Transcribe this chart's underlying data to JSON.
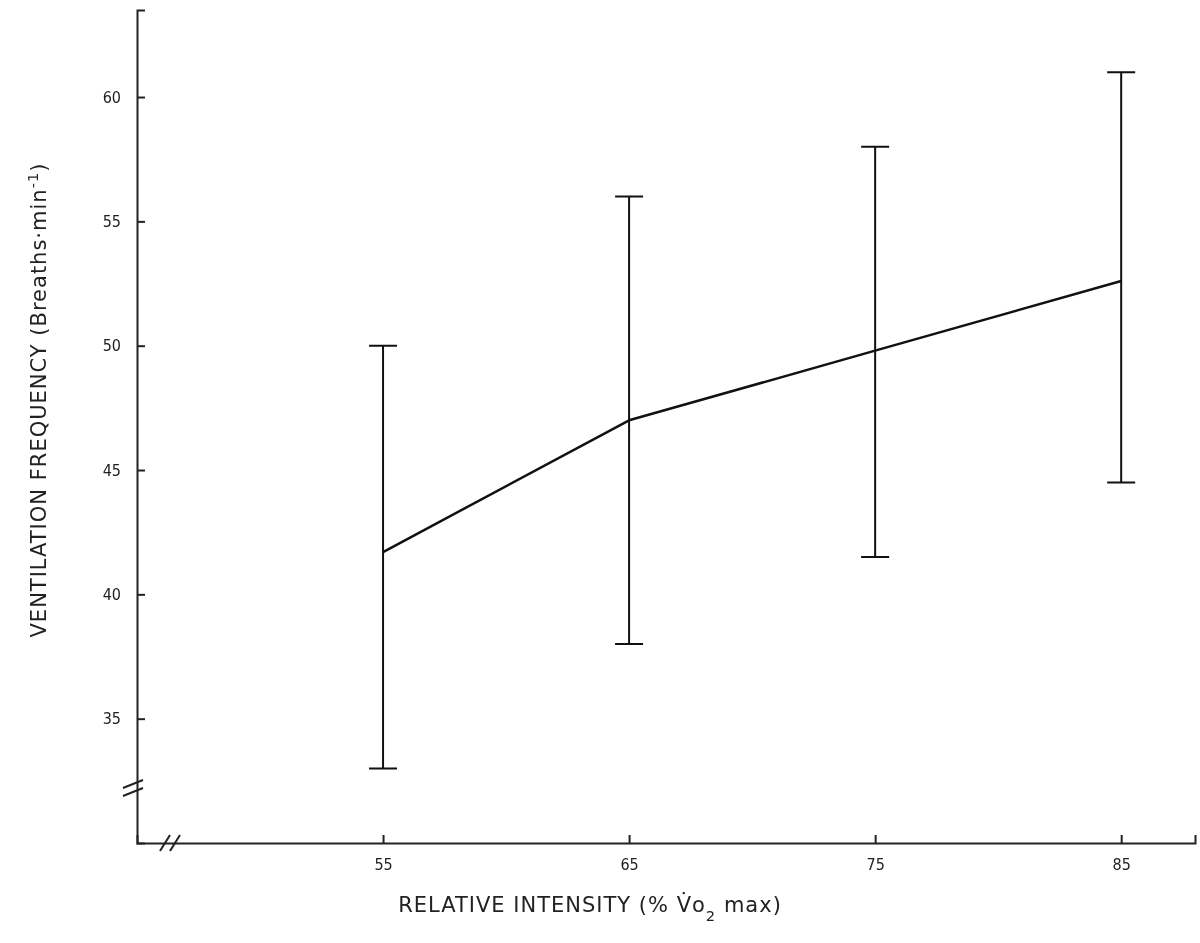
{
  "chart_data": {
    "type": "line",
    "xlabel": "RELATIVE INTENSITY (% V̇o$_{2}$ max)",
    "ylabel": "VENTILATION FREQUENCY (Breaths·min$^{-1}$)",
    "x": [
      55,
      65,
      75,
      85
    ],
    "series": [
      {
        "color": "#111111",
        "values": [
          41.7,
          47.0,
          49.8,
          52.6
        ],
        "errors": [
          [
            33,
            50
          ],
          [
            38,
            56
          ],
          [
            41.5,
            58
          ],
          [
            44.5,
            61
          ]
        ]
      }
    ],
    "xlim": [
      45,
      88
    ],
    "xticks": [
      55,
      65,
      75,
      85
    ],
    "ylim": [
      30,
      63.5
    ],
    "yticks": [
      35,
      40,
      45,
      50,
      55,
      60
    ],
    "grid": false,
    "marker": "none",
    "line_style": "solid"
  }
}
